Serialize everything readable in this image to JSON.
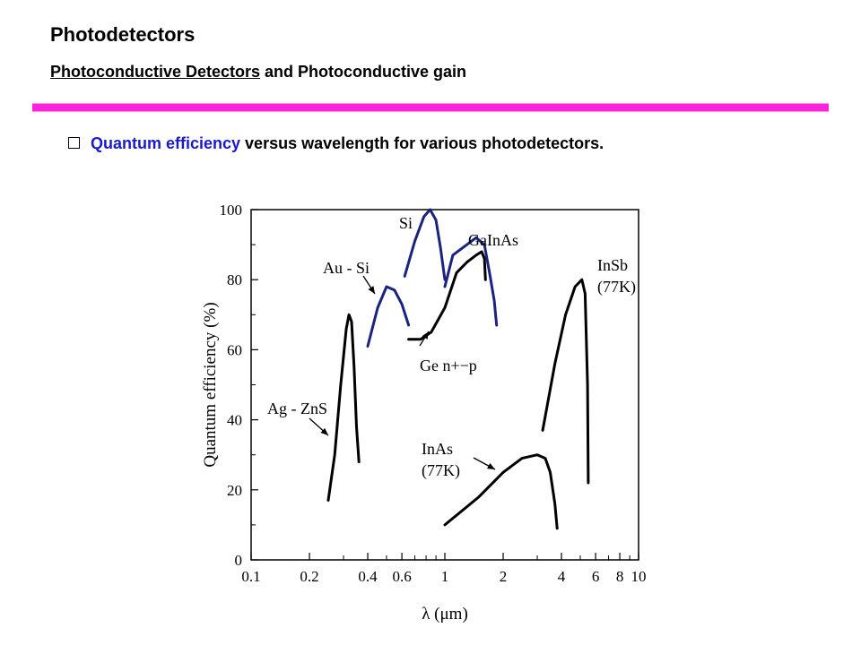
{
  "header": {
    "title": "Photodetectors",
    "subtitle_underlined": "Photoconductive Detectors",
    "subtitle_rest": " and Photoconductive gain",
    "rule_color": "#ff22dd"
  },
  "bullet": {
    "highlight": "Quantum efficiency",
    "rest": " versus wavelength for various photodetectors.",
    "highlight_color": "#1a1acc"
  },
  "chart_data": {
    "type": "line",
    "x_scale": "log",
    "xlabel": "λ (μm)",
    "ylabel": "Quantum efficiency (%)",
    "xlim": [
      0.1,
      10
    ],
    "ylim": [
      0,
      100
    ],
    "x_ticks": [
      0.1,
      0.2,
      0.4,
      0.6,
      1,
      2,
      4,
      6,
      8,
      10
    ],
    "x_tick_labels": [
      "0.1",
      "0.2",
      "0.4",
      "0.6",
      "1",
      "2",
      "4",
      "6",
      "8",
      "10"
    ],
    "y_ticks": [
      0,
      20,
      40,
      60,
      80,
      100
    ],
    "y_tick_labels": [
      "0",
      "20",
      "40",
      "60",
      "80",
      "100"
    ],
    "series": [
      {
        "name": "Ag - ZnS",
        "color": "#000000",
        "points": [
          [
            0.25,
            17
          ],
          [
            0.27,
            30
          ],
          [
            0.29,
            50
          ],
          [
            0.31,
            66
          ],
          [
            0.32,
            70
          ],
          [
            0.33,
            68
          ],
          [
            0.34,
            55
          ],
          [
            0.35,
            38
          ],
          [
            0.36,
            28
          ]
        ]
      },
      {
        "name": "Au - Si",
        "color": "#1a237e",
        "points": [
          [
            0.4,
            61
          ],
          [
            0.45,
            72
          ],
          [
            0.5,
            78
          ],
          [
            0.55,
            77
          ],
          [
            0.6,
            73
          ],
          [
            0.65,
            67
          ]
        ]
      },
      {
        "name": "Si",
        "color": "#1a237e",
        "points": [
          [
            0.62,
            81
          ],
          [
            0.7,
            91
          ],
          [
            0.78,
            98
          ],
          [
            0.84,
            100
          ],
          [
            0.9,
            97
          ],
          [
            0.95,
            89
          ],
          [
            1.0,
            80
          ]
        ]
      },
      {
        "name": "GaInAs",
        "color": "#1a237e",
        "points": [
          [
            1.0,
            78
          ],
          [
            1.1,
            87
          ],
          [
            1.3,
            90
          ],
          [
            1.45,
            92
          ],
          [
            1.6,
            90
          ],
          [
            1.7,
            82
          ],
          [
            1.8,
            74
          ],
          [
            1.85,
            67
          ]
        ]
      },
      {
        "name": "Ge n+-p",
        "color": "#000000",
        "points": [
          [
            0.65,
            63
          ],
          [
            0.75,
            63
          ],
          [
            0.85,
            65
          ],
          [
            1.0,
            72
          ],
          [
            1.15,
            82
          ],
          [
            1.3,
            85
          ],
          [
            1.45,
            87
          ],
          [
            1.55,
            88
          ],
          [
            1.6,
            86
          ],
          [
            1.62,
            80
          ]
        ]
      },
      {
        "name": "InAs (77K)",
        "color": "#000000",
        "points": [
          [
            1.0,
            10
          ],
          [
            1.5,
            18
          ],
          [
            2.0,
            25
          ],
          [
            2.5,
            29
          ],
          [
            3.0,
            30
          ],
          [
            3.3,
            29
          ],
          [
            3.5,
            25
          ],
          [
            3.7,
            16
          ],
          [
            3.8,
            9
          ]
        ]
      },
      {
        "name": "InSb (77K)",
        "color": "#000000",
        "points": [
          [
            3.2,
            37
          ],
          [
            3.7,
            56
          ],
          [
            4.2,
            70
          ],
          [
            4.7,
            78
          ],
          [
            5.1,
            80
          ],
          [
            5.3,
            76
          ],
          [
            5.45,
            50
          ],
          [
            5.5,
            22
          ]
        ]
      }
    ],
    "labels": [
      {
        "text": "Si"
      },
      {
        "text": "Au - Si"
      },
      {
        "text": "GaInAs"
      },
      {
        "text": "InSb"
      },
      {
        "text": "(77K)"
      },
      {
        "text": "Ge n+−p"
      },
      {
        "text": "Ag - ZnS"
      },
      {
        "text": "InAs"
      },
      {
        "text": "(77K)"
      }
    ]
  }
}
